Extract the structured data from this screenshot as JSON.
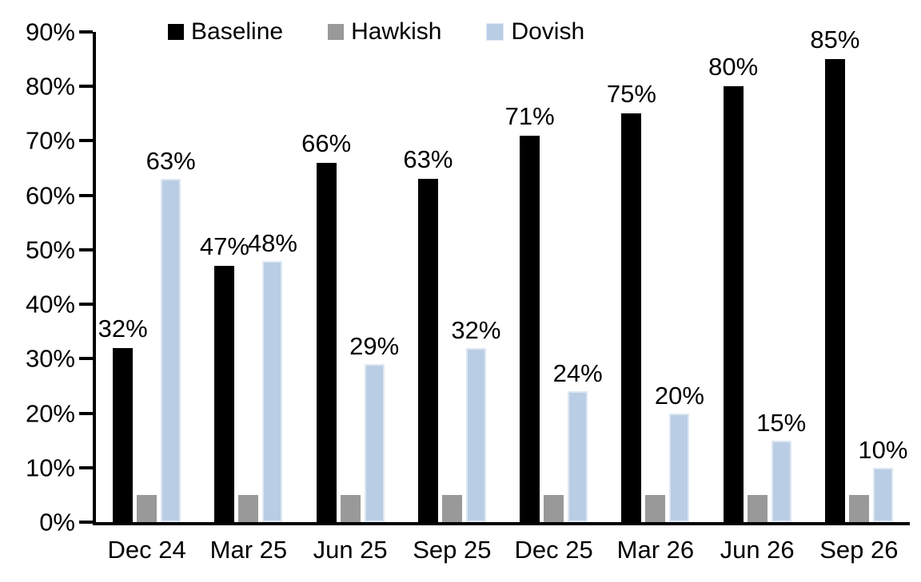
{
  "chart_data": {
    "type": "bar",
    "title": "",
    "categories": [
      "Dec 24",
      "Mar 25",
      "Jun 25",
      "Sep 25",
      "Dec 25",
      "Mar 26",
      "Jun 26",
      "Sep 26"
    ],
    "series": [
      {
        "name": "Baseline",
        "color": "#000000",
        "values": [
          32,
          47,
          66,
          63,
          71,
          75,
          80,
          85
        ],
        "data_labels": [
          "32%",
          "47%",
          "66%",
          "63%",
          "71%",
          "75%",
          "80%",
          "85%"
        ]
      },
      {
        "name": "Hawkish",
        "color": "#999999",
        "values": [
          5,
          5,
          5,
          5,
          5,
          5,
          5,
          5
        ],
        "data_labels": [
          "",
          "",
          "",
          "",
          "",
          "",
          "",
          ""
        ]
      },
      {
        "name": "Dovish",
        "color": "#b9cde4",
        "border_color": "#dde7f2",
        "values": [
          63,
          48,
          29,
          32,
          24,
          20,
          15,
          10
        ],
        "data_labels": [
          "63%",
          "48%",
          "29%",
          "32%",
          "24%",
          "20%",
          "15%",
          "10%"
        ]
      }
    ],
    "y_axis": {
      "min": 0,
      "max": 90,
      "step": 10,
      "tick_labels": [
        "0%",
        "10%",
        "20%",
        "30%",
        "40%",
        "50%",
        "60%",
        "70%",
        "80%",
        "90%"
      ]
    },
    "legend": {
      "position": "top",
      "entries": [
        "Baseline",
        "Hawkish",
        "Dovish"
      ]
    },
    "grid": false,
    "axis_color": "#000000",
    "background_color": "#ffffff"
  }
}
